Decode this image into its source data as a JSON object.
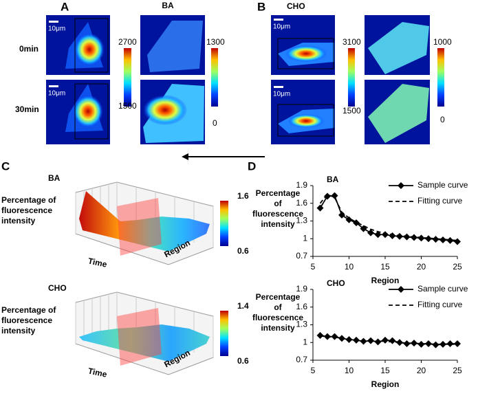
{
  "panel_a": {
    "label": "A",
    "title": "BA",
    "rows": [
      "0min",
      "30min"
    ],
    "scale_bar": "10μm",
    "colorbar_1": {
      "max": 2700,
      "min": 1500
    },
    "colorbar_2": {
      "max": 1300,
      "min": 0
    }
  },
  "panel_b": {
    "label": "B",
    "title": "CHO",
    "scale_bar": "10μm",
    "colorbar_1": {
      "max": 3100,
      "min": 1500
    },
    "colorbar_2": {
      "max": 1000,
      "min": 0
    }
  },
  "panel_c": {
    "label": "C",
    "y_label": [
      "Percentage of",
      "fluorescence",
      "intensity"
    ],
    "x_label": "Time",
    "z_label": "Region",
    "plots": [
      {
        "title": "BA",
        "colorbar": {
          "max": 1.6,
          "min": 0.6
        }
      },
      {
        "title": "CHO",
        "colorbar": {
          "max": 1.4,
          "min": 0.6
        }
      }
    ]
  },
  "panel_d": {
    "label": "D"
  },
  "chart_data": [
    {
      "type": "line",
      "title": "BA",
      "y_label": [
        "Percentage",
        "of",
        "fluorescence",
        "intensity"
      ],
      "x_label": "Region",
      "x": [
        6,
        7,
        8,
        9,
        10,
        11,
        12,
        13,
        14,
        15,
        16,
        17,
        18,
        19,
        20,
        21,
        22,
        23,
        24,
        25
      ],
      "series": [
        {
          "name": "Sample curve",
          "color": "#000000",
          "dash": "solid",
          "marker": "diamond",
          "values": [
            1.52,
            1.72,
            1.73,
            1.4,
            1.32,
            1.27,
            1.17,
            1.1,
            1.07,
            1.07,
            1.05,
            1.04,
            1.03,
            1.02,
            1.01,
            1.0,
            0.99,
            0.98,
            0.97,
            0.95
          ]
        },
        {
          "name": "Fitting curve",
          "color": "#000000",
          "dash": "dashed",
          "marker": "none",
          "values": [
            1.6,
            1.75,
            1.7,
            1.45,
            1.35,
            1.28,
            1.22,
            1.16,
            1.12,
            1.09,
            1.07,
            1.05,
            1.04,
            1.03,
            1.02,
            1.01,
            1.0,
            0.99,
            0.98,
            0.97
          ]
        }
      ],
      "xlim": [
        5,
        25
      ],
      "xticks": [
        5,
        10,
        15,
        20,
        25
      ],
      "ylim": [
        0.7,
        1.9
      ],
      "yticks": [
        0.7,
        1,
        1.3,
        1.6,
        1.9
      ],
      "legend": "upper right"
    },
    {
      "type": "line",
      "title": "CHO",
      "y_label": [
        "Percentage",
        "of",
        "fluorescence",
        "intensity"
      ],
      "x_label": "Region",
      "x": [
        6,
        7,
        8,
        9,
        10,
        11,
        12,
        13,
        14,
        15,
        16,
        17,
        18,
        19,
        20,
        21,
        22,
        23,
        24,
        25
      ],
      "series": [
        {
          "name": "Sample curve",
          "color": "#000000",
          "dash": "solid",
          "marker": "diamond",
          "values": [
            1.12,
            1.1,
            1.1,
            1.07,
            1.05,
            1.04,
            1.02,
            1.03,
            1.01,
            1.04,
            1.03,
            1.0,
            0.98,
            0.99,
            0.97,
            0.98,
            0.96,
            0.97,
            0.98,
            0.98
          ]
        },
        {
          "name": "Fitting curve",
          "color": "#000000",
          "dash": "dashed",
          "marker": "none",
          "values": [
            1.11,
            1.1,
            1.09,
            1.07,
            1.06,
            1.04,
            1.03,
            1.02,
            1.02,
            1.02,
            1.01,
            1.0,
            0.99,
            0.99,
            0.98,
            0.98,
            0.97,
            0.97,
            0.97,
            0.97
          ]
        }
      ],
      "xlim": [
        5,
        25
      ],
      "xticks": [
        5,
        10,
        15,
        20,
        25
      ],
      "ylim": [
        0.7,
        1.9
      ],
      "yticks": [
        0.7,
        1,
        1.3,
        1.6,
        1.9
      ],
      "legend": "upper right"
    }
  ]
}
